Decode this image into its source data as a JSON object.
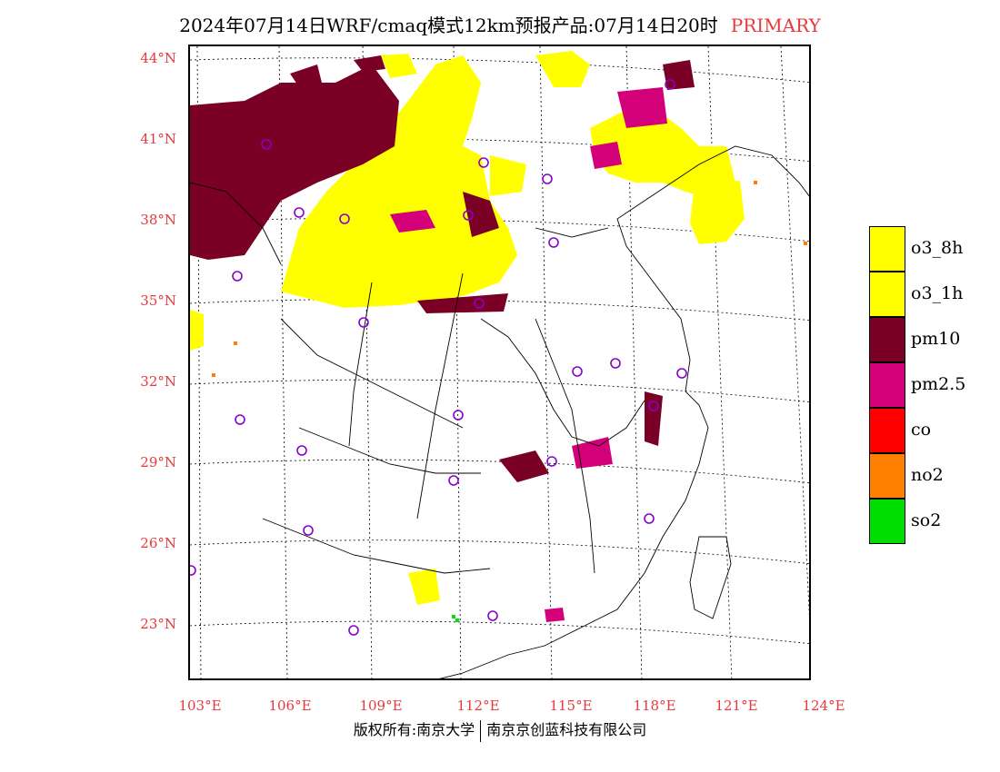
{
  "header": {
    "title": "2024年07月14日WRF/cmaq模式12km预报产品:07月14日20时",
    "tag": "PRIMARY"
  },
  "axes": {
    "lat_labels": [
      "44°N",
      "41°N",
      "38°N",
      "35°N",
      "32°N",
      "29°N",
      "26°N",
      "23°N"
    ],
    "lon_labels": [
      "103°E",
      "106°E",
      "109°E",
      "112°E",
      "115°E",
      "118°E",
      "121°E",
      "124°E"
    ]
  },
  "legend": {
    "items": [
      {
        "label": "o3_8h",
        "color": "#ffff00"
      },
      {
        "label": "o3_1h",
        "color": "#ffff00"
      },
      {
        "label": "pm10",
        "color": "#7a0025"
      },
      {
        "label": "pm2.5",
        "color": "#d4007a"
      },
      {
        "label": "co",
        "color": "#ff0000"
      },
      {
        "label": "no2",
        "color": "#ff7f00"
      },
      {
        "label": "so2",
        "color": "#00dd00"
      }
    ]
  },
  "footer": {
    "left": "版权所有:南京大学",
    "right": "南京京创蓝科技有限公司"
  },
  "colors": {
    "label_red": "#e8383b",
    "ozone": "#ffff00",
    "pm10": "#7a0025",
    "pm25": "#d4007a",
    "station_circle": "#8800cc"
  }
}
